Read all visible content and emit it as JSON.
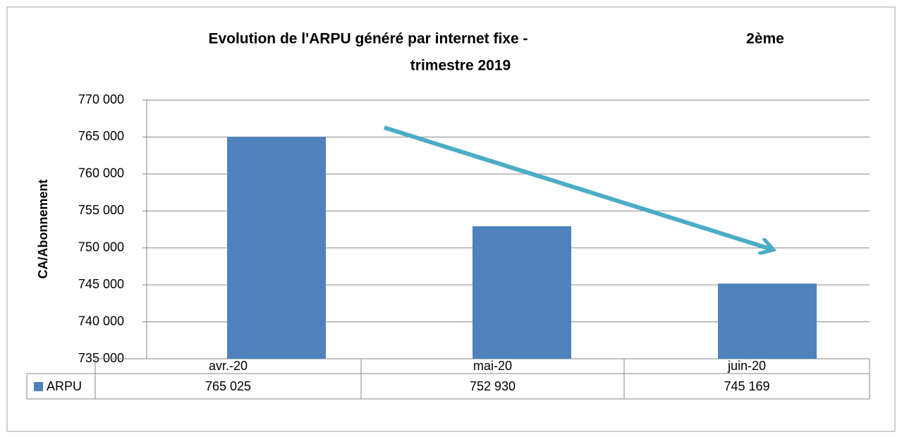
{
  "chart_data": {
    "type": "bar",
    "title": [
      "Evolution de l'ARPU généré par internet fixe -",
      "2ème",
      "trimestre 2019"
    ],
    "y_label": "CA/Abonnement",
    "categories": [
      "avr.-20",
      "mai-20",
      "juin-20"
    ],
    "series": [
      {
        "name": "ARPU",
        "color": "#4f81bd",
        "values": [
          765025,
          752930,
          745169
        ],
        "value_labels": [
          "765 025",
          "752 930",
          "745 169"
        ]
      }
    ],
    "ylim": [
      735000,
      770000
    ],
    "yticks": [
      {
        "value": 735000,
        "label": "735 000"
      },
      {
        "value": 740000,
        "label": "740 000"
      },
      {
        "value": 745000,
        "label": "745 000"
      },
      {
        "value": 750000,
        "label": "750 000"
      },
      {
        "value": 755000,
        "label": "755 000"
      },
      {
        "value": 760000,
        "label": "760 000"
      },
      {
        "value": 765000,
        "label": "765 000"
      },
      {
        "value": 770000,
        "label": "770 000"
      }
    ],
    "grid": true
  }
}
